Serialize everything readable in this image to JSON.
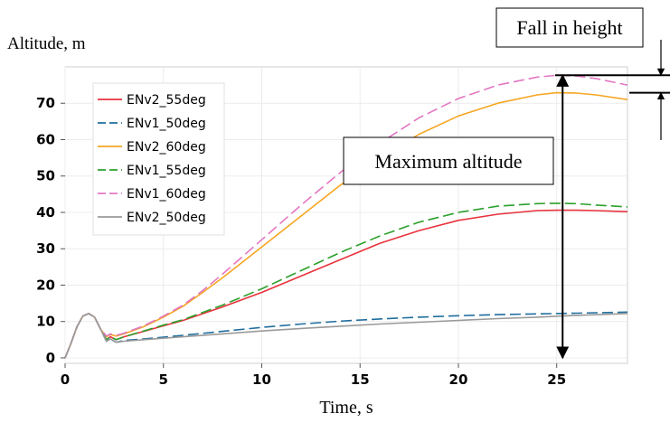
{
  "chart_data": {
    "type": "line",
    "title": "",
    "xlabel": "Time, s",
    "ylabel": "Altitude, m",
    "xlim": [
      0,
      28.6
    ],
    "ylim": [
      -1.5,
      80
    ],
    "x_ticks": [
      0,
      5,
      10,
      15,
      20,
      25
    ],
    "y_ticks": [
      0,
      10,
      20,
      30,
      40,
      50,
      60,
      70
    ],
    "grid": true,
    "legend_position": "top-left",
    "series": [
      {
        "name": "ENv2_55deg",
        "color": "#e8323c",
        "dash": "solid",
        "x": [
          0,
          0.3,
          0.6,
          0.9,
          1.2,
          1.5,
          1.8,
          2.1,
          2.3,
          2.6,
          3,
          4,
          5,
          6,
          8,
          10,
          12,
          14,
          16,
          18,
          20,
          22,
          24,
          25,
          26,
          27,
          28.6
        ],
        "y": [
          0,
          4,
          8.5,
          11.5,
          12.2,
          11.2,
          8,
          5,
          5.8,
          5,
          5.8,
          7.3,
          8.8,
          10.3,
          14,
          18,
          22.5,
          27,
          31.5,
          35,
          37.8,
          39.5,
          40.5,
          40.6,
          40.6,
          40.5,
          40.2
        ]
      },
      {
        "name": "ENv1_50deg",
        "color": "#1f6e9e",
        "dash": "long-dash",
        "x": [
          0,
          0.3,
          0.6,
          0.9,
          1.2,
          1.5,
          1.8,
          2.1,
          2.3,
          2.6,
          3,
          4,
          6,
          8,
          10,
          12,
          14,
          16,
          18,
          20,
          22,
          24,
          26,
          28.6
        ],
        "y": [
          0,
          4,
          8.5,
          11.5,
          12.2,
          11.2,
          8,
          4.6,
          5.2,
          4.3,
          4.8,
          5.2,
          6.2,
          7.3,
          8.4,
          9.3,
          10.1,
          10.7,
          11.2,
          11.6,
          11.9,
          12.1,
          12.3,
          12.6
        ]
      },
      {
        "name": "ENv2_60deg",
        "color": "#f5a623",
        "dash": "solid",
        "x": [
          0,
          0.3,
          0.6,
          0.9,
          1.2,
          1.5,
          1.8,
          2.1,
          2.3,
          2.6,
          3,
          4,
          5,
          6,
          7,
          8,
          10,
          12,
          14,
          16,
          18,
          20,
          22,
          24,
          25,
          26,
          27,
          28.6
        ],
        "y": [
          0,
          4,
          8.5,
          11.5,
          12.2,
          11.2,
          8,
          5.8,
          6.4,
          6,
          6.6,
          8.6,
          11.2,
          14.2,
          18,
          22,
          30.5,
          39,
          47.5,
          55,
          61.5,
          66.5,
          70,
          72.3,
          72.9,
          72.8,
          72.3,
          71
        ]
      },
      {
        "name": "ENv1_55deg",
        "color": "#2ca02c",
        "dash": "long-dash",
        "x": [
          0,
          0.3,
          0.6,
          0.9,
          1.2,
          1.5,
          1.8,
          2.1,
          2.3,
          2.6,
          3,
          4,
          5,
          6,
          8,
          10,
          12,
          14,
          16,
          18,
          20,
          22,
          24,
          25,
          26,
          27,
          28.6
        ],
        "y": [
          0,
          4,
          8.5,
          11.5,
          12.2,
          11.2,
          8,
          5,
          5.8,
          5,
          5.8,
          7.4,
          9,
          10.5,
          14.5,
          19,
          24,
          29,
          33.5,
          37.3,
          40,
          41.7,
          42.4,
          42.5,
          42.4,
          42,
          41.5
        ]
      },
      {
        "name": "ENv1_60deg",
        "color": "#e377c2",
        "dash": "long-dash",
        "x": [
          0,
          0.3,
          0.6,
          0.9,
          1.2,
          1.5,
          1.8,
          2.1,
          2.3,
          2.6,
          3,
          4,
          5,
          6,
          7,
          8,
          10,
          12,
          14,
          16,
          18,
          20,
          22,
          24,
          25,
          26,
          27,
          28.6
        ],
        "y": [
          0,
          4,
          8.5,
          11.5,
          12.2,
          11.2,
          8,
          6,
          6.6,
          6.2,
          6.8,
          8.8,
          11.5,
          14.5,
          18.5,
          23,
          32.5,
          42,
          51,
          59,
          66,
          71.3,
          75,
          77.2,
          77.7,
          77.5,
          76.8,
          75
        ]
      },
      {
        "name": "ENv2_50deg",
        "color": "#9a9a9a",
        "dash": "solid",
        "x": [
          0,
          0.3,
          0.6,
          0.9,
          1.2,
          1.5,
          1.8,
          2.1,
          2.3,
          2.6,
          3,
          4,
          6,
          8,
          10,
          12,
          14,
          16,
          18,
          20,
          22,
          24,
          26,
          28.6
        ],
        "y": [
          0,
          4,
          8.5,
          11.5,
          12.2,
          11.2,
          8,
          4.6,
          5.2,
          4.3,
          4.6,
          5,
          5.8,
          6.6,
          7.4,
          8.1,
          8.7,
          9.3,
          9.8,
          10.3,
          10.8,
          11.2,
          11.7,
          12.2
        ]
      }
    ],
    "annotations": [
      {
        "text": "Fall in height",
        "type": "boxed-label"
      },
      {
        "text": "Maximum altitude",
        "type": "boxed-label",
        "arrow_x": 25.3,
        "arrow_y_from": 0,
        "arrow_y_to": 77.7
      },
      {
        "text": "",
        "type": "height-drop-indicator",
        "y_top": 77.7,
        "y_bottom": 72.9
      }
    ]
  }
}
